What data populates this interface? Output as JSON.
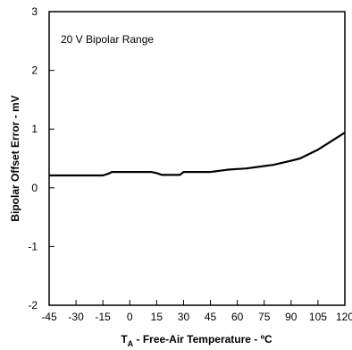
{
  "chart_data": {
    "type": "line",
    "title": "",
    "xlabel_sub_main": "T",
    "xlabel_sub": "A",
    "xlabel_rest": " - Free-Air Temperature - ºC",
    "ylabel": "Bipolar Offset Error - mV",
    "annotation": "20 V Bipolar Range",
    "xlim": [
      -45,
      120
    ],
    "ylim": [
      -2,
      3
    ],
    "x_ticks": [
      -45,
      -30,
      -15,
      0,
      15,
      30,
      45,
      60,
      75,
      90,
      105,
      120
    ],
    "x_tick_labels": [
      "-45",
      "-30",
      "-15",
      "0",
      "15",
      "30",
      "45",
      "60",
      "75",
      "90",
      "105",
      "120"
    ],
    "y_ticks": [
      -2,
      -1,
      0,
      1,
      2,
      3
    ],
    "y_tick_labels": [
      "-2",
      "-1",
      "0",
      "1",
      "2",
      "3"
    ],
    "grid": false,
    "series": [
      {
        "x": [
          -45,
          -15,
          -12,
          -10,
          12,
          15,
          18,
          22,
          25,
          28,
          30,
          33,
          45,
          50,
          55,
          60,
          65,
          75,
          80,
          90,
          95,
          105,
          120
        ],
        "y": [
          0.21,
          0.21,
          0.24,
          0.27,
          0.27,
          0.25,
          0.22,
          0.22,
          0.22,
          0.22,
          0.27,
          0.27,
          0.27,
          0.29,
          0.31,
          0.32,
          0.33,
          0.37,
          0.39,
          0.46,
          0.5,
          0.65,
          0.94
        ]
      }
    ],
    "line_color": "#000000"
  }
}
